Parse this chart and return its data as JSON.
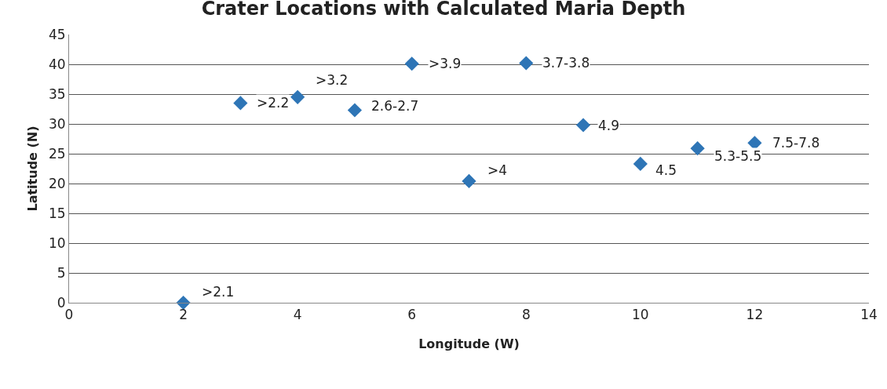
{
  "chart_data": {
    "type": "scatter",
    "title": "Crater Locations with Calculated Maria Depth",
    "xlabel": "Longitude (W)",
    "ylabel": "Latitude (N)",
    "x": [
      2,
      3,
      4,
      5,
      6,
      7,
      8,
      9,
      10,
      11,
      12
    ],
    "values": [
      0,
      33.5,
      34.5,
      32.3,
      40.1,
      20.4,
      40.2,
      29.8,
      23.3,
      25.9,
      26.8
    ],
    "annotations": [
      {
        "text": ">2.1",
        "x": 2,
        "y": 0
      },
      {
        "text": ">2.2",
        "x": 3,
        "y": 33.5
      },
      {
        "text": ">3.2",
        "x": 4,
        "y": 34.5
      },
      {
        "text": "2.6-2.7",
        "x": 5,
        "y": 32.3
      },
      {
        "text": ">3.9",
        "x": 6,
        "y": 40.1
      },
      {
        "text": ">4",
        "x": 7,
        "y": 20.4
      },
      {
        "text": "3.7-3.8",
        "x": 8,
        "y": 40.2
      },
      {
        "text": "4.9",
        "x": 9,
        "y": 29.8
      },
      {
        "text": "4.5",
        "x": 10,
        "y": 23.3
      },
      {
        "text": "5.3-5.5",
        "x": 11,
        "y": 25.9
      },
      {
        "text": "7.5-7.8",
        "x": 12,
        "y": 26.8
      }
    ],
    "color": "#2e75b6",
    "marker": "diamond",
    "xlim": [
      0,
      14
    ],
    "xticks": [
      0,
      2,
      4,
      6,
      8,
      10,
      12,
      14
    ],
    "ylim": [
      0,
      45
    ],
    "yticks": [
      0,
      5,
      10,
      15,
      20,
      25,
      30,
      35,
      40,
      45
    ],
    "grid": "y"
  }
}
